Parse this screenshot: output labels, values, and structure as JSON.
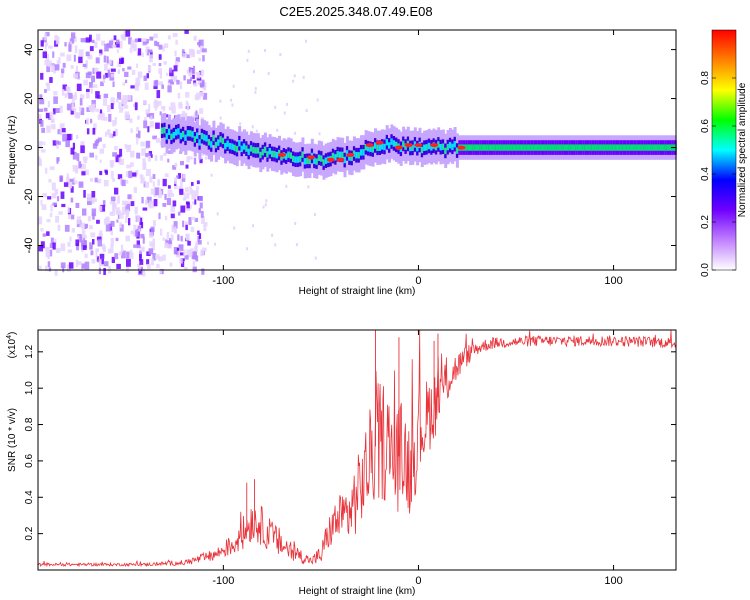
{
  "title": "C2E5.2025.348.07.49.E08",
  "chart_data": [
    {
      "type": "heatmap",
      "name": "spectrogram",
      "xlabel": "Height of straight line (km)",
      "ylabel": "Frequency (Hz)",
      "xlim": [
        -195,
        132
      ],
      "ylim": [
        -50,
        48
      ],
      "xticks": [
        -100,
        0,
        100
      ],
      "xtick_labels": [
        "-100",
        "0",
        "100"
      ],
      "yticks": [
        -40,
        -20,
        0,
        20,
        40
      ],
      "ytick_labels": [
        "-40",
        "-20",
        "0",
        "20",
        "40"
      ],
      "ridge_track": {
        "x": [
          -130,
          -120,
          -110,
          -100,
          -90,
          -80,
          -70,
          -60,
          -50,
          -40,
          -30,
          -20,
          -10,
          0,
          10,
          20,
          40,
          60,
          80,
          100,
          120,
          132
        ],
        "y": [
          6,
          5,
          3,
          2,
          0,
          -2,
          -3,
          -4,
          -5,
          -4,
          -2,
          1,
          1,
          0,
          0,
          0,
          0,
          0,
          0,
          0,
          0,
          0
        ]
      },
      "peak_points": {
        "x": [
          -70,
          -55,
          -45,
          -40,
          -35,
          -25,
          -20,
          -10,
          -5,
          0,
          8,
          22
        ],
        "y": [
          -3,
          -4,
          -5,
          -5,
          -3,
          1,
          2,
          0,
          1,
          1,
          1,
          0
        ]
      },
      "noise_region_x": [
        -195,
        -110
      ],
      "colorbar": {
        "label": "Normalized spectral amplitude",
        "range": [
          0.0,
          1.0
        ],
        "ticks": [
          0.0,
          0.2,
          0.4,
          0.6,
          0.8
        ],
        "tick_labels": [
          "0.0",
          "0.2",
          "0.4",
          "0.6",
          "0.8"
        ],
        "colors": [
          "#ffffff",
          "#c080ff",
          "#7000ff",
          "#0000ff",
          "#00ffff",
          "#00ff00",
          "#ffff00",
          "#ff8000",
          "#ff0000"
        ]
      }
    },
    {
      "type": "line",
      "name": "snr",
      "xlabel": "Height of straight line (km)",
      "ylabel": "SNR (10 * v/v)",
      "ylabel_exponent": "(x10",
      "ylabel_exponent_sup": "4",
      "ylabel_exponent_close": ")",
      "xlim": [
        -195,
        132
      ],
      "ylim": [
        0,
        1.32
      ],
      "xticks": [
        -100,
        0,
        100
      ],
      "xtick_labels": [
        "-100",
        "0",
        "100"
      ],
      "yticks": [
        0.2,
        0.4,
        0.6,
        0.8,
        1.0,
        1.2
      ],
      "ytick_labels": [
        "0.2",
        "0.4",
        "0.6",
        "0.8",
        "1.0",
        "1.2"
      ],
      "line_color": "#e8333a",
      "envelope": {
        "x": [
          -195,
          -140,
          -120,
          -105,
          -95,
          -90,
          -85,
          -80,
          -75,
          -70,
          -65,
          -55,
          -50,
          -47,
          -43,
          -35,
          -30,
          -25,
          -22,
          -18,
          -12,
          -8,
          -4,
          0,
          5,
          10,
          15,
          20,
          25,
          30,
          35,
          40,
          60,
          80,
          100,
          132
        ],
        "y": [
          0.03,
          0.03,
          0.04,
          0.08,
          0.14,
          0.2,
          0.28,
          0.24,
          0.18,
          0.14,
          0.1,
          0.05,
          0.08,
          0.18,
          0.26,
          0.32,
          0.45,
          0.6,
          0.68,
          0.72,
          0.6,
          0.65,
          0.55,
          0.75,
          0.85,
          0.95,
          1.05,
          1.12,
          1.18,
          1.22,
          1.24,
          1.25,
          1.26,
          1.26,
          1.26,
          1.25
        ]
      },
      "noise_amplitude": {
        "x": [
          -195,
          -140,
          -120,
          -100,
          -85,
          -70,
          -55,
          -50,
          -40,
          -30,
          -20,
          -10,
          0,
          10,
          20,
          30,
          40,
          132
        ],
        "y": [
          0.008,
          0.008,
          0.015,
          0.04,
          0.12,
          0.08,
          0.02,
          0.06,
          0.14,
          0.22,
          0.35,
          0.3,
          0.25,
          0.18,
          0.08,
          0.04,
          0.03,
          0.03
        ]
      },
      "spikes": {
        "x": [
          -88,
          -84,
          -22,
          -10,
          8,
          10
        ],
        "y": [
          0.48,
          0.5,
          1.32,
          1.28,
          1.26,
          1.3
        ]
      }
    }
  ]
}
